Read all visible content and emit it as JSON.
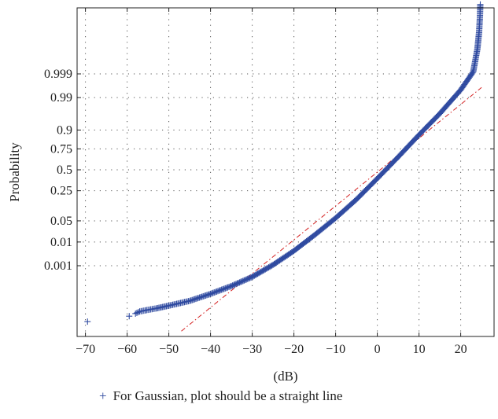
{
  "chart_data": {
    "type": "scatter",
    "title": "",
    "xlabel": "(dB)",
    "ylabel": "Probability",
    "xlim": [
      -72,
      28
    ],
    "x_ticks": [
      -70,
      -60,
      -50,
      -40,
      -30,
      -20,
      -10,
      0,
      10,
      20
    ],
    "x_tick_labels": [
      "−70",
      "−60",
      "−50",
      "−40",
      "−30",
      "−20",
      "−10",
      "0",
      "10",
      "20"
    ],
    "y_scale": "normal-probability",
    "y_ticks": [
      0.999,
      0.99,
      0.9,
      0.75,
      0.5,
      0.25,
      0.05,
      0.01,
      0.001
    ],
    "y_tick_labels": [
      "0.999",
      "0.99",
      "0.9",
      "0.75",
      "0.5",
      "0.25",
      "0.05",
      "0.01",
      "0.001"
    ],
    "grid": true,
    "colors": {
      "data": "#2f4aa0",
      "reference": "#d42020"
    },
    "series": [
      {
        "marker": "+",
        "x": [
          -69.5,
          -59.5,
          -58,
          -57,
          -55,
          -53,
          -50,
          -45,
          -40,
          -35,
          -30,
          -25,
          -20,
          -15,
          -10,
          -5,
          0,
          5,
          10,
          15,
          20,
          23,
          24,
          24.4,
          24.6,
          24.7
        ],
        "y": [
          5e-07,
          1.2e-06,
          1.8e-06,
          2.5e-06,
          3.2e-06,
          4e-06,
          6e-06,
          1.2e-05,
          3.2e-05,
          9e-05,
          0.00028,
          0.0011,
          0.0045,
          0.018,
          0.06,
          0.17,
          0.39,
          0.66,
          0.87,
          0.965,
          0.995,
          0.9992,
          0.99995,
          0.999995,
          0.9999995,
          0.99999995
        ]
      },
      {
        "type": "reference-line",
        "x": [
          -47,
          25
        ],
        "y": [
          1e-07,
          0.996
        ]
      }
    ],
    "legend": {
      "position": "bottom-center",
      "entries": [
        {
          "marker": "+",
          "label": "For Gaussian, plot should be a straight line"
        }
      ]
    }
  }
}
